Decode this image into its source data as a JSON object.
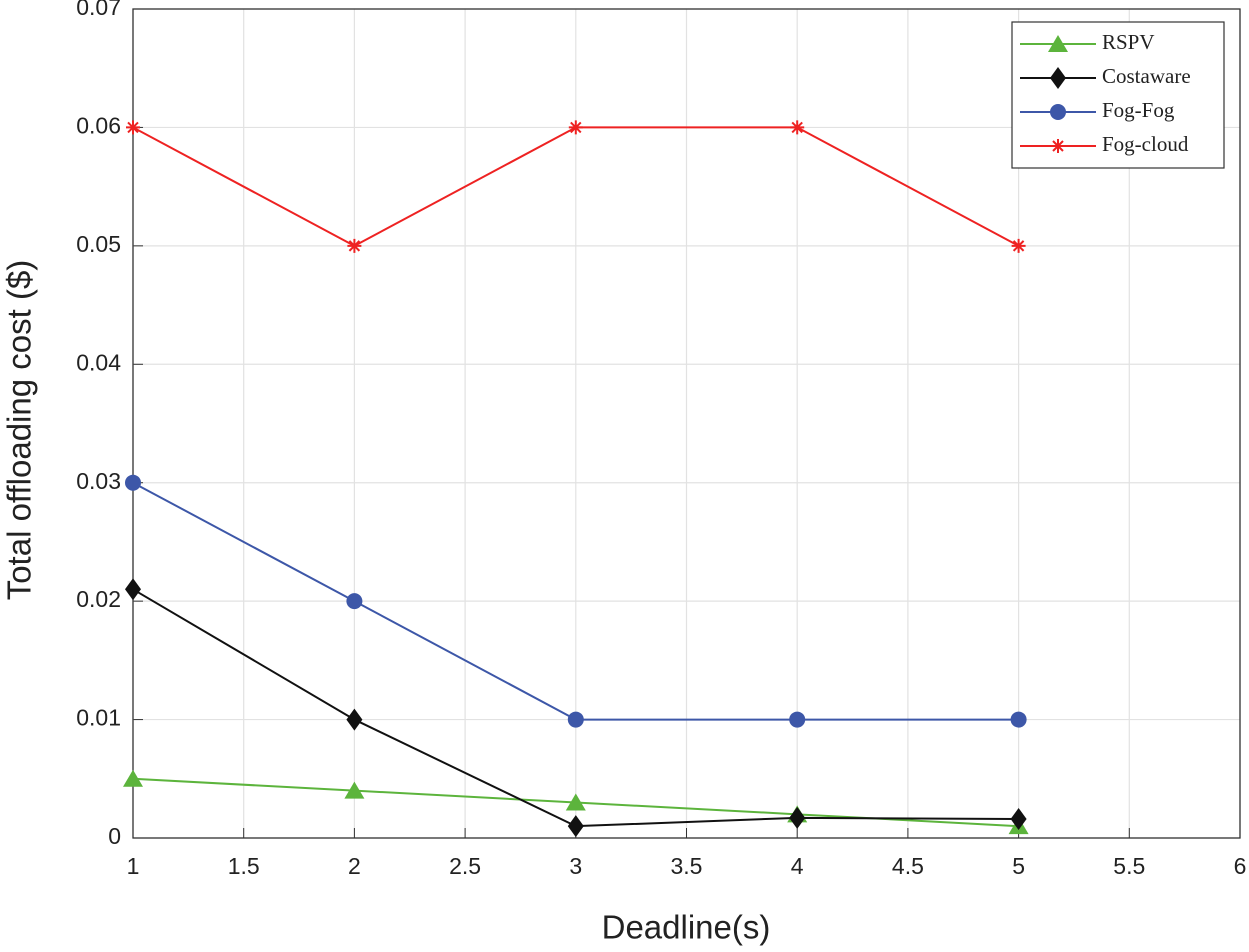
{
  "chart_data": {
    "type": "line",
    "x_label": "Deadline(s)",
    "y_label": "Total offloading cost ($)",
    "x": [
      1,
      2,
      3,
      4,
      5
    ],
    "series": [
      {
        "name": "RSPV",
        "color": "#5cb43c",
        "marker": "triangle",
        "values": [
          0.005,
          0.004,
          0.003,
          0.002,
          0.001
        ]
      },
      {
        "name": "Costaware",
        "color": "#111111",
        "marker": "diamond",
        "values": [
          0.021,
          0.01,
          0.001,
          0.0017,
          0.0016
        ]
      },
      {
        "name": "Fog-Fog",
        "color": "#3d57a8",
        "marker": "circle",
        "values": [
          0.03,
          0.02,
          0.01,
          0.01,
          0.01
        ]
      },
      {
        "name": "Fog-cloud",
        "color": "#ee2222",
        "marker": "star",
        "values": [
          0.06,
          0.05,
          0.06,
          0.06,
          0.05
        ]
      }
    ],
    "xlim": [
      1,
      6
    ],
    "xticks": [
      1,
      1.5,
      2,
      2.5,
      3,
      3.5,
      4,
      4.5,
      5,
      5.5,
      6
    ],
    "ylim": [
      0,
      0.07
    ],
    "yticks": [
      0,
      0.01,
      0.02,
      0.03,
      0.04,
      0.05,
      0.06,
      0.07
    ],
    "grid": true,
    "legend": "upper right"
  }
}
